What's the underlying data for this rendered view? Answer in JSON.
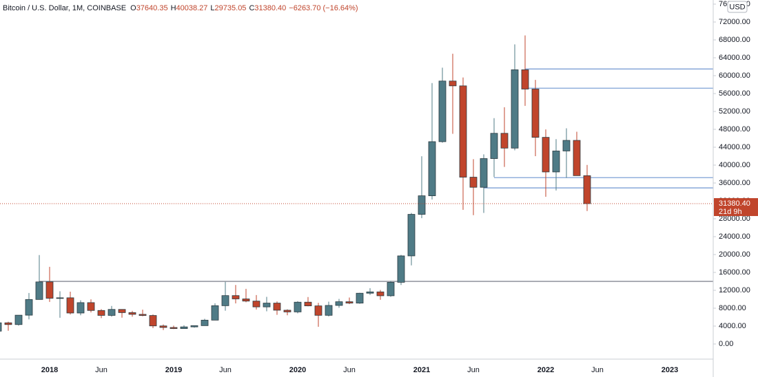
{
  "chart_data": {
    "type": "candlestick",
    "title": "Bitcoin / U.S. Dollar, 1M, COINBASE",
    "ohlc_header": [
      {
        "key": "O",
        "value": "37640.35"
      },
      {
        "key": "H",
        "value": "40038.27"
      },
      {
        "key": "L",
        "value": "29735.05"
      },
      {
        "key": "C",
        "value": "31380.40"
      }
    ],
    "change": "−6263.70 (−16.64%)",
    "currency": "USD",
    "up_color": "#4f7b86",
    "down_color": "#c0452c",
    "categories": [
      null,
      null,
      null,
      null,
      null,
      "2018",
      null,
      null,
      null,
      null,
      "Jun",
      null,
      null,
      null,
      null,
      null,
      null,
      "2019",
      null,
      null,
      null,
      null,
      "Jun",
      null,
      null,
      null,
      null,
      null,
      null,
      "2020",
      null,
      null,
      null,
      null,
      "Jun",
      null,
      null,
      null,
      null,
      null,
      null,
      "2021",
      null,
      null,
      null,
      null,
      "Jun",
      null,
      null,
      null,
      null,
      null,
      null,
      "2022",
      null,
      null,
      null,
      null,
      "Jun",
      null,
      null,
      null,
      null,
      null,
      null,
      "2023",
      null,
      null,
      null,
      null
    ],
    "open": [
      2870,
      4735,
      4340,
      6440,
      9950,
      13880,
      10220,
      10330,
      6925,
      9245,
      7495,
      6390,
      7730,
      7015,
      6625,
      6370,
      4040,
      3690,
      3440,
      3820,
      4100,
      5330,
      8560,
      10820,
      10080,
      9590,
      8290,
      9140,
      7550,
      7170,
      9350,
      8520,
      6410,
      8620,
      9450,
      9140,
      11350,
      11650,
      10780,
      13790,
      19700,
      28990,
      33140,
      45240,
      58800,
      57720,
      37300,
      35040,
      41460,
      47110,
      43800,
      61320,
      57000,
      46210,
      38470,
      43160,
      45530,
      37640.35,
      null,
      null,
      null,
      null,
      null,
      null,
      null,
      null,
      null,
      null,
      null,
      null
    ],
    "high": [
      4750,
      4980,
      6470,
      11400,
      19890,
      17250,
      11780,
      11700,
      9770,
      9990,
      7780,
      8500,
      7750,
      7400,
      7680,
      6600,
      4370,
      4100,
      4200,
      4140,
      5640,
      9100,
      13880,
      13200,
      12330,
      10950,
      10540,
      9520,
      7750,
      9580,
      10500,
      9190,
      9460,
      10080,
      10380,
      11450,
      12480,
      12070,
      14100,
      19920,
      29300,
      41990,
      58350,
      61790,
      64900,
      59600,
      41330,
      42400,
      50500,
      52950,
      67000,
      69000,
      59050,
      47990,
      45800,
      48240,
      47470,
      40038.27,
      null,
      null,
      null,
      null,
      null,
      null,
      null,
      null,
      null,
      null,
      null,
      null
    ],
    "low": [
      2580,
      2970,
      4100,
      5500,
      10400,
      9400,
      5870,
      6600,
      6430,
      7060,
      5780,
      6090,
      5880,
      6100,
      6200,
      3550,
      3120,
      3340,
      3380,
      3650,
      4080,
      5330,
      7450,
      9070,
      9330,
      7710,
      7300,
      6520,
      6430,
      6850,
      8420,
      3850,
      6150,
      8100,
      8900,
      8980,
      10960,
      9880,
      10540,
      13200,
      17570,
      28130,
      32300,
      45000,
      47000,
      30000,
      28800,
      29300,
      37330,
      39600,
      43300,
      53250,
      42000,
      32920,
      34320,
      37160,
      37700,
      29735.05,
      null,
      null,
      null,
      null,
      null,
      null,
      null,
      null,
      null,
      null,
      null,
      null
    ],
    "close": [
      4735,
      4340,
      6440,
      9950,
      13880,
      10220,
      10330,
      6925,
      9245,
      7495,
      6390,
      7730,
      7015,
      6625,
      6370,
      4040,
      3690,
      3440,
      3820,
      4100,
      5330,
      8560,
      10820,
      10080,
      9590,
      8290,
      9140,
      7550,
      7170,
      9350,
      8520,
      6410,
      8620,
      9450,
      9140,
      11350,
      11650,
      10780,
      13790,
      19700,
      28990,
      33140,
      45240,
      58800,
      57720,
      37300,
      35040,
      41460,
      47110,
      43800,
      61320,
      57000,
      46210,
      38470,
      43160,
      45530,
      37640,
      31380.4,
      null,
      null,
      null,
      null,
      null,
      null,
      null,
      null,
      null,
      null,
      null,
      null
    ],
    "ylim": [
      -3385,
      76923
    ],
    "yticks": [
      {
        "value": 0,
        "label": "0.00"
      },
      {
        "value": 4000,
        "label": "4000.00"
      },
      {
        "value": 8000,
        "label": "8000.00"
      },
      {
        "value": 12000,
        "label": "12000.00"
      },
      {
        "value": 16000,
        "label": "16000.00"
      },
      {
        "value": 20000,
        "label": "20000.00"
      },
      {
        "value": 24000,
        "label": "24000.00"
      },
      {
        "value": 28000,
        "label": "28000.00"
      },
      {
        "value": 32000,
        "label": "32000.00"
      },
      {
        "value": 36000,
        "label": "36000.00"
      },
      {
        "value": 40000,
        "label": "40000.00"
      },
      {
        "value": 44000,
        "label": "44000.00"
      },
      {
        "value": 48000,
        "label": "48000.00"
      },
      {
        "value": 52000,
        "label": "52000.00"
      },
      {
        "value": 56000,
        "label": "56000.00"
      },
      {
        "value": 60000,
        "label": "60000.00"
      },
      {
        "value": 64000,
        "label": "64000.00"
      },
      {
        "value": 68000,
        "label": "68000.00"
      },
      {
        "value": 72000,
        "label": "72000.00"
      },
      {
        "value": 76000,
        "label": "76000.00"
      }
    ],
    "hlines": [
      {
        "value": 61500,
        "from": 51,
        "color": "#6f95d0"
      },
      {
        "value": 57200,
        "from": 51,
        "color": "#6f95d0"
      },
      {
        "value": 37200,
        "from": 48,
        "color": "#6f95d0"
      },
      {
        "value": 34900,
        "from": 47,
        "color": "#6f95d0"
      },
      {
        "value": 14000,
        "from": 4,
        "color": "#787b86"
      }
    ],
    "last_price": {
      "value": 31380.4,
      "label": "31380.40"
    },
    "countdown": "21d 9h"
  }
}
